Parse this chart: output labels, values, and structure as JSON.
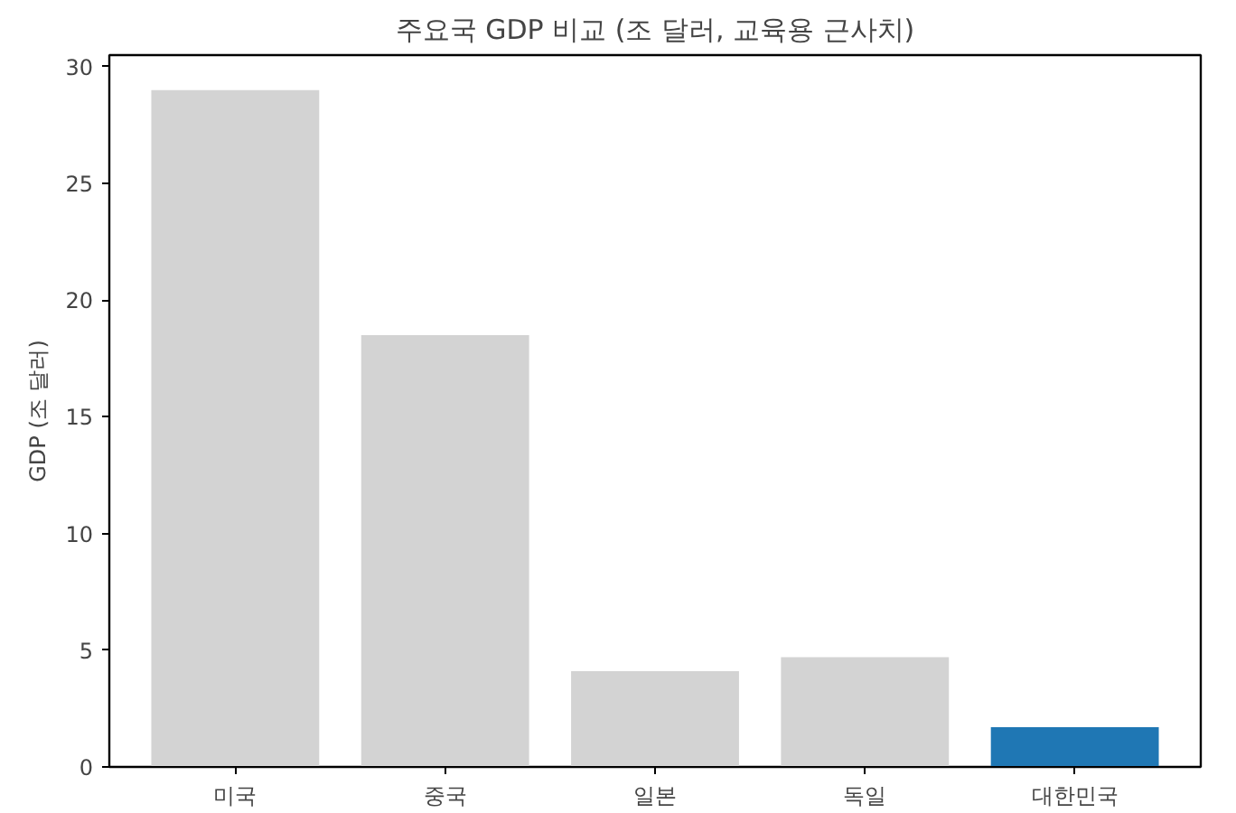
{
  "chart_data": {
    "type": "bar",
    "title": "주요국 GDP 비교 (조 달러, 교육용 근사치)",
    "ylabel": "GDP (조 달러)",
    "categories": [
      "미국",
      "중국",
      "일본",
      "독일",
      "대한민국"
    ],
    "values": [
      29.0,
      18.5,
      4.1,
      4.7,
      1.7
    ],
    "colors": [
      "#d3d3d3",
      "#d3d3d3",
      "#d3d3d3",
      "#d3d3d3",
      "#1f77b4"
    ],
    "ylim": [
      0,
      30.5
    ],
    "yticks": [
      0,
      5,
      10,
      15,
      20,
      25,
      30
    ],
    "grid": false
  }
}
